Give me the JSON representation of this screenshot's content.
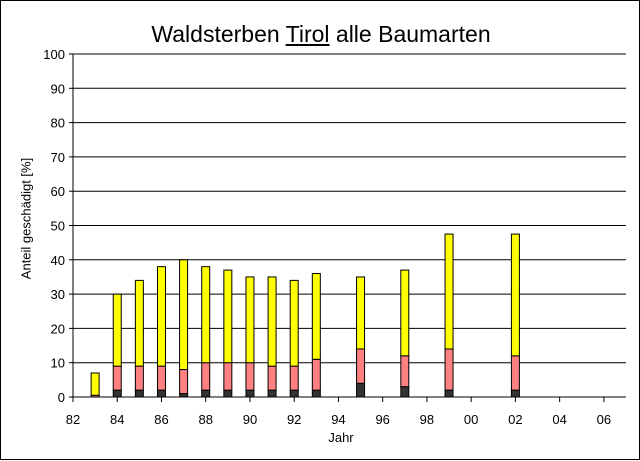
{
  "chart_data": {
    "type": "bar",
    "stacked": true,
    "title_parts": [
      "Waldsterben ",
      "Tirol",
      " alle Baumarten"
    ],
    "xlabel": "Jahr",
    "ylabel": "Anteil geschädigt [%]",
    "ylim": [
      0,
      100
    ],
    "yticks": [
      0,
      10,
      20,
      30,
      40,
      50,
      60,
      70,
      80,
      90,
      100
    ],
    "xlim": [
      82,
      107
    ],
    "xtick_years": [
      82,
      84,
      86,
      88,
      90,
      92,
      94,
      96,
      98,
      100,
      102,
      104,
      106
    ],
    "xtick_labels": [
      "82",
      "84",
      "86",
      "88",
      "90",
      "92",
      "94",
      "96",
      "98",
      "00",
      "02",
      "04",
      "06"
    ],
    "grid": true,
    "legend": "none",
    "x": [
      83,
      84,
      85,
      86,
      87,
      88,
      89,
      90,
      91,
      92,
      93,
      95,
      97,
      99,
      102
    ],
    "series": [
      {
        "color": "#333333",
        "values": [
          0,
          2,
          2,
          2,
          1,
          2,
          2,
          2,
          2,
          2,
          2,
          4,
          3,
          2,
          2
        ]
      },
      {
        "color": "#ff8080",
        "values": [
          0.5,
          7,
          7,
          7,
          7,
          8,
          8,
          8,
          7,
          7,
          9,
          10,
          9,
          12,
          10
        ]
      },
      {
        "color": "#ffff00",
        "values": [
          6.5,
          21,
          25,
          29,
          32,
          28,
          27,
          25,
          26,
          25,
          25,
          21,
          25,
          33.5,
          35.5
        ]
      }
    ]
  }
}
